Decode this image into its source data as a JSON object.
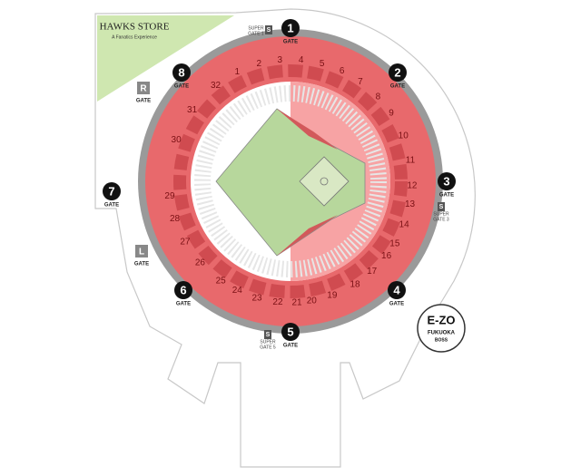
{
  "store": {
    "name": "HAWKS STORE",
    "tagline": "A Fanatics Experience"
  },
  "gates": [
    {
      "number": "1",
      "label": "GATE"
    },
    {
      "number": "2",
      "label": "GATE"
    },
    {
      "number": "3",
      "label": "GATE"
    },
    {
      "number": "4",
      "label": "GATE"
    },
    {
      "number": "5",
      "label": "GATE"
    },
    {
      "number": "6",
      "label": "GATE"
    },
    {
      "number": "7",
      "label": "GATE"
    },
    {
      "number": "8",
      "label": "GATE"
    }
  ],
  "super_gates": [
    {
      "icon": "S",
      "line1": "SUPER",
      "line2": "GATE 1"
    },
    {
      "icon": "S",
      "line1": "SUPER",
      "line2": "GATE 3"
    },
    {
      "icon": "S",
      "line1": "SUPER",
      "line2": "GATE 5"
    }
  ],
  "markers": [
    {
      "letter": "R",
      "label": "GATE"
    },
    {
      "letter": "L",
      "label": "GATE"
    }
  ],
  "sections": [
    "1",
    "2",
    "3",
    "4",
    "5",
    "6",
    "7",
    "8",
    "9",
    "10",
    "11",
    "12",
    "13",
    "14",
    "15",
    "16",
    "17",
    "18",
    "19",
    "20",
    "21",
    "22",
    "23",
    "24",
    "25",
    "26",
    "27",
    "28",
    "29",
    "30",
    "31",
    "32"
  ],
  "logo": {
    "line1": "E-ZO",
    "line2": "FUKUOKA",
    "line3": "BOSS"
  }
}
